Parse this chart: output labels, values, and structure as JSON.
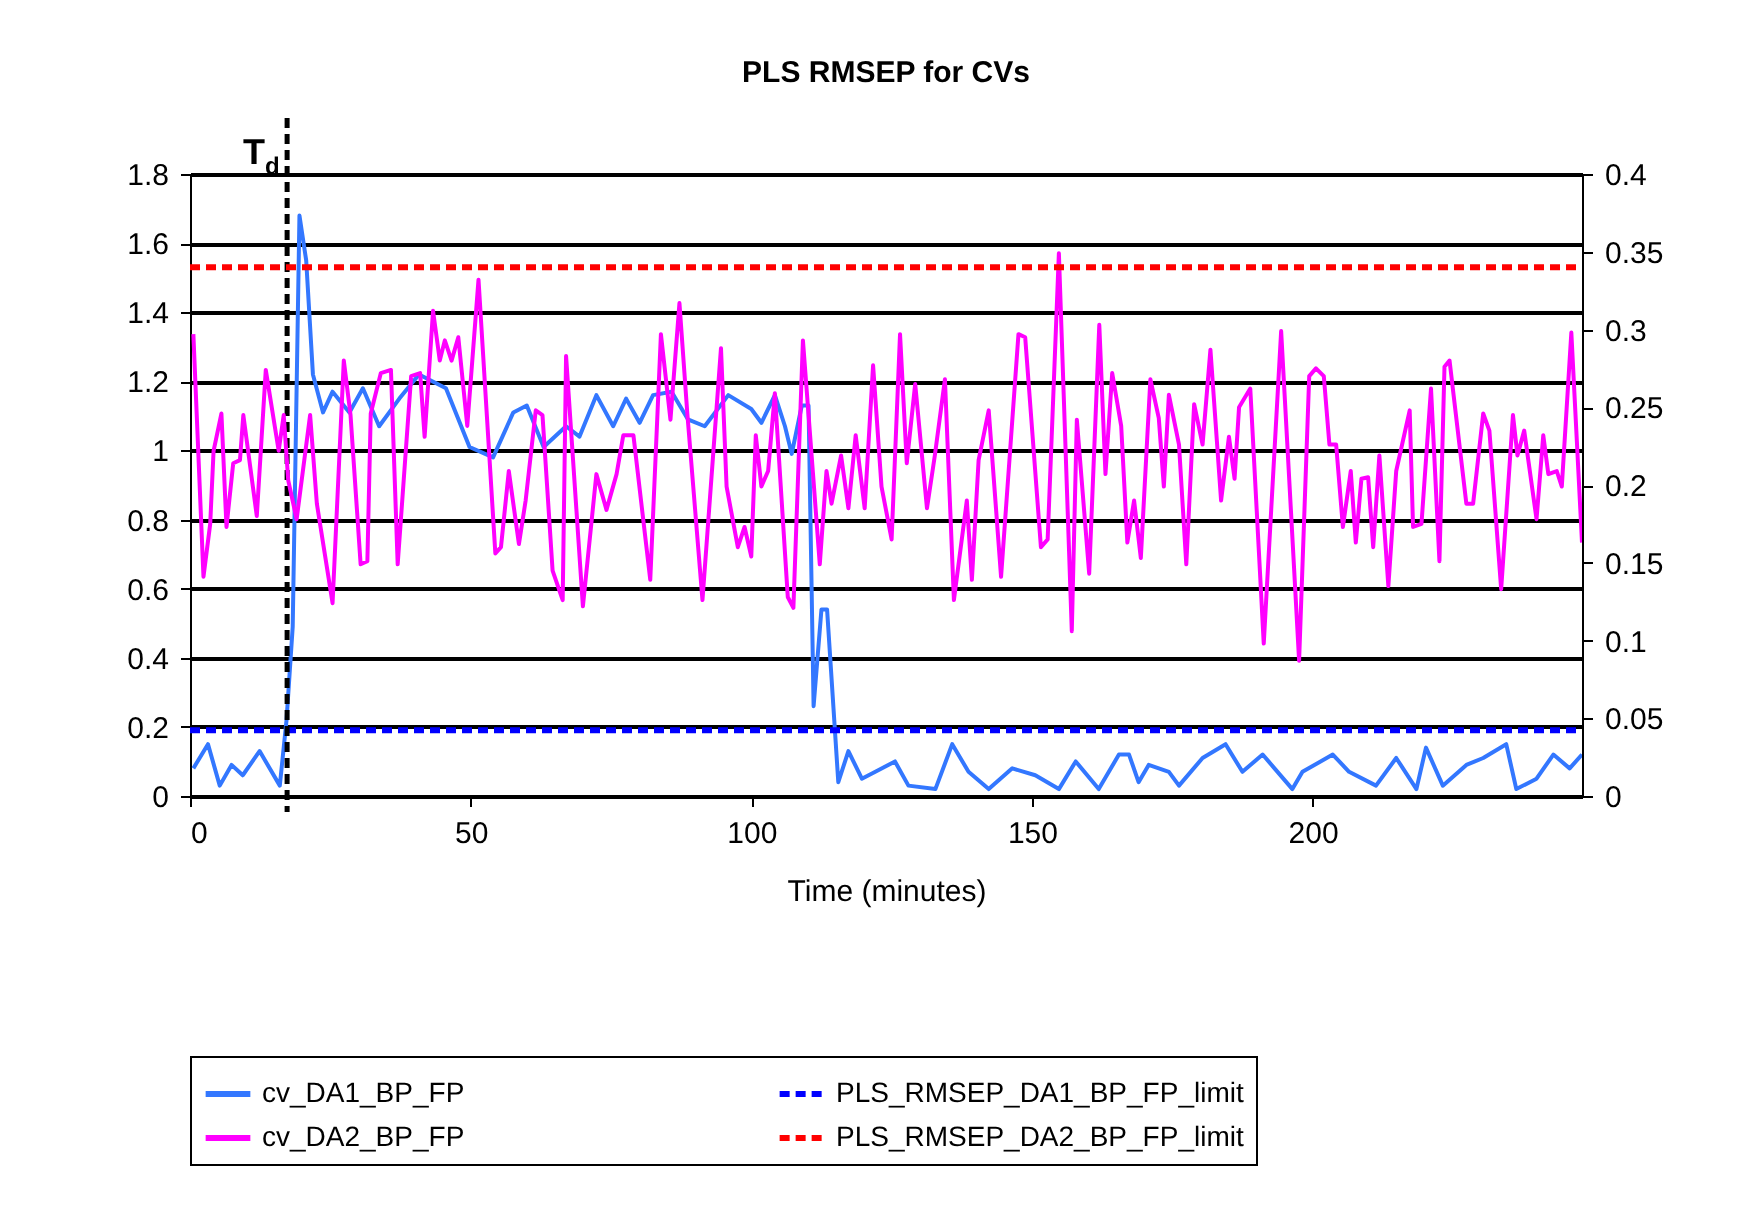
{
  "chart_data": {
    "type": "line",
    "title": "PLS RMSEP for CVs",
    "xlabel": "Time (minutes)",
    "xlim": [
      0,
      248
    ],
    "xticks": [
      0,
      50,
      100,
      150,
      200
    ],
    "ylim": [
      0,
      1.8
    ],
    "yticks": [
      0,
      0.2,
      0.4,
      0.6,
      0.8,
      1,
      1.2,
      1.4,
      1.6,
      1.8
    ],
    "y2lim": [
      0,
      0.4
    ],
    "y2ticks": [
      0,
      0.05,
      0.1,
      0.15,
      0.2,
      0.25,
      0.3,
      0.35,
      0.4
    ],
    "grid": "y",
    "legend": "bottom",
    "marker": "none",
    "line_style": "solid",
    "series": [
      {
        "name": "cv_DA1_BP_FP",
        "color": "#3377ff",
        "axis": "y",
        "x": [
          0.6,
          3.2,
          5.3,
          7.4,
          9.4,
          12.4,
          16,
          17.2,
          18.3,
          19.5,
          20.7,
          21.9,
          23.7,
          25.4,
          28.4,
          30.8,
          33.7,
          37.3,
          40.8,
          45.6,
          49.8,
          54,
          57.6,
          60,
          63,
          67,
          69.4,
          72.4,
          75.4,
          77.7,
          80.1,
          82.5,
          85.8,
          88.7,
          91.7,
          95.9,
          100,
          101.8,
          104.2,
          106,
          107.2,
          109,
          110.2,
          111.1,
          112.5,
          113.5,
          115.5,
          117.3,
          119.7,
          122.1,
          125.6,
          128,
          132.8,
          135.8,
          138.7,
          142.3,
          146.5,
          150.6,
          154.8,
          157.8,
          161.9,
          165.5,
          167.3,
          169,
          170.8,
          174.4,
          176.2,
          180.4,
          184.5,
          187.5,
          191.1,
          196.4,
          198.2,
          203.6,
          206.5,
          211.3,
          214.9,
          218.5,
          220.2,
          223.2,
          227.4,
          230.4,
          234.5,
          236.3,
          239.9,
          242.9,
          245.8,
          248
        ],
        "values": [
          0.08,
          0.15,
          0.03,
          0.09,
          0.06,
          0.13,
          0.03,
          0.22,
          0.49,
          1.68,
          1.55,
          1.22,
          1.11,
          1.17,
          1.11,
          1.18,
          1.07,
          1.15,
          1.22,
          1.18,
          1.01,
          0.98,
          1.11,
          1.13,
          1.01,
          1.07,
          1.04,
          1.16,
          1.07,
          1.15,
          1.08,
          1.16,
          1.17,
          1.09,
          1.07,
          1.16,
          1.12,
          1.08,
          1.16,
          1.07,
          0.99,
          1.13,
          1.13,
          0.26,
          0.54,
          0.54,
          0.04,
          0.13,
          0.05,
          0.07,
          0.1,
          0.03,
          0.02,
          0.15,
          0.07,
          0.02,
          0.08,
          0.06,
          0.02,
          0.1,
          0.02,
          0.12,
          0.12,
          0.04,
          0.09,
          0.07,
          0.03,
          0.11,
          0.15,
          0.07,
          0.12,
          0.02,
          0.07,
          0.12,
          0.07,
          0.03,
          0.11,
          0.02,
          0.14,
          0.03,
          0.09,
          0.11,
          0.15,
          0.02,
          0.05,
          0.12,
          0.08,
          0.12
        ]
      },
      {
        "name": "cv_DA2_BP_FP",
        "color": "#ff00ff",
        "axis": "y2",
        "x": [
          0.6,
          2.4,
          3.6,
          4.2,
          5.6,
          6.5,
          7.7,
          8.9,
          9.5,
          11.9,
          13.5,
          15.8,
          16.7,
          17.5,
          19,
          21.4,
          22.6,
          25.4,
          27.4,
          28.6,
          30.4,
          31.6,
          32.2,
          34,
          35.8,
          37,
          39.4,
          41,
          41.8,
          43.3,
          44.5,
          45.4,
          46.6,
          47.8,
          49.4,
          51.4,
          54.4,
          55.4,
          56.8,
          58.6,
          59.8,
          61.6,
          62.8,
          64.6,
          66.4,
          67,
          70,
          72.4,
          74.2,
          76,
          77.2,
          79,
          82,
          83.9,
          85.6,
          87.2,
          88.6,
          91.3,
          94.6,
          95.6,
          97.6,
          98.8,
          100,
          100.8,
          101.8,
          103,
          104.2,
          106.5,
          107.5,
          109.2,
          111,
          112.2,
          113.4,
          114.3,
          116,
          117.3,
          118.6,
          120.2,
          121.7,
          123.2,
          125,
          126.5,
          127.7,
          129.2,
          131.3,
          132.7,
          134.5,
          136.1,
          138.4,
          139.3,
          140.5,
          142.3,
          144.5,
          147.6,
          148.8,
          151.6,
          152.8,
          154.8,
          157.1,
          158,
          160.2,
          162,
          163.1,
          164.3,
          165.9,
          167,
          168.2,
          169.4,
          171.1,
          172.6,
          173.5,
          174.4,
          176.2,
          177.5,
          178.9,
          180.4,
          181.8,
          183.7,
          185.1,
          186.1,
          186.9,
          188.9,
          191.3,
          194.4,
          197.6,
          199.4,
          200.6,
          202,
          203,
          204.2,
          205.4,
          206.8,
          207.7,
          208.7,
          209.9,
          210.8,
          211.9,
          213.5,
          214.9,
          217.3,
          217.9,
          219.4,
          221.1,
          222.6,
          223.5,
          224.4,
          227.4,
          228.6,
          230.4,
          231.5,
          233.6,
          235.7,
          236.5,
          237.7,
          239.9,
          241.1,
          242,
          243.5,
          244.4,
          246.1,
          248
        ],
        "values": [
          0.297,
          0.141,
          0.175,
          0.222,
          0.246,
          0.173,
          0.214,
          0.216,
          0.245,
          0.18,
          0.274,
          0.222,
          0.245,
          0.203,
          0.178,
          0.245,
          0.188,
          0.124,
          0.28,
          0.245,
          0.149,
          0.151,
          0.246,
          0.272,
          0.274,
          0.149,
          0.27,
          0.272,
          0.231,
          0.312,
          0.28,
          0.293,
          0.28,
          0.295,
          0.238,
          0.332,
          0.156,
          0.16,
          0.209,
          0.162,
          0.19,
          0.248,
          0.245,
          0.145,
          0.126,
          0.283,
          0.122,
          0.207,
          0.184,
          0.207,
          0.232,
          0.232,
          0.139,
          0.297,
          0.242,
          0.317,
          0.246,
          0.126,
          0.288,
          0.199,
          0.16,
          0.173,
          0.154,
          0.232,
          0.199,
          0.209,
          0.259,
          0.128,
          0.121,
          0.293,
          0.207,
          0.149,
          0.209,
          0.188,
          0.219,
          0.185,
          0.232,
          0.185,
          0.277,
          0.199,
          0.165,
          0.297,
          0.214,
          0.265,
          0.185,
          0.219,
          0.268,
          0.126,
          0.19,
          0.139,
          0.216,
          0.248,
          0.141,
          0.297,
          0.295,
          0.16,
          0.165,
          0.349,
          0.106,
          0.242,
          0.143,
          0.303,
          0.207,
          0.272,
          0.238,
          0.163,
          0.19,
          0.153,
          0.268,
          0.243,
          0.199,
          0.258,
          0.226,
          0.149,
          0.252,
          0.226,
          0.287,
          0.19,
          0.231,
          0.204,
          0.25,
          0.262,
          0.098,
          0.299,
          0.087,
          0.27,
          0.275,
          0.27,
          0.226,
          0.226,
          0.173,
          0.209,
          0.163,
          0.204,
          0.205,
          0.16,
          0.219,
          0.135,
          0.209,
          0.248,
          0.173,
          0.175,
          0.262,
          0.151,
          0.276,
          0.28,
          0.188,
          0.188,
          0.246,
          0.235,
          0.133,
          0.245,
          0.219,
          0.235,
          0.178,
          0.232,
          0.207,
          0.209,
          0.199,
          0.298,
          0.163
        ]
      }
    ],
    "ref_lines": [
      {
        "axis": "y",
        "value": 0.19,
        "label": "PLS_RMSEP_DA1_BP_FP_limit",
        "color": "#0000ff",
        "line_style": "dashed"
      },
      {
        "axis": "y2",
        "value": 0.34,
        "label": "PLS_RMSEP_DA2_BP_FP_limit",
        "color": "#ff0000",
        "line_style": "dashed"
      },
      {
        "axis": "x",
        "value": 17.3,
        "label": "T$_{d}$",
        "color": "#000000",
        "line_style": "dashed"
      }
    ]
  }
}
